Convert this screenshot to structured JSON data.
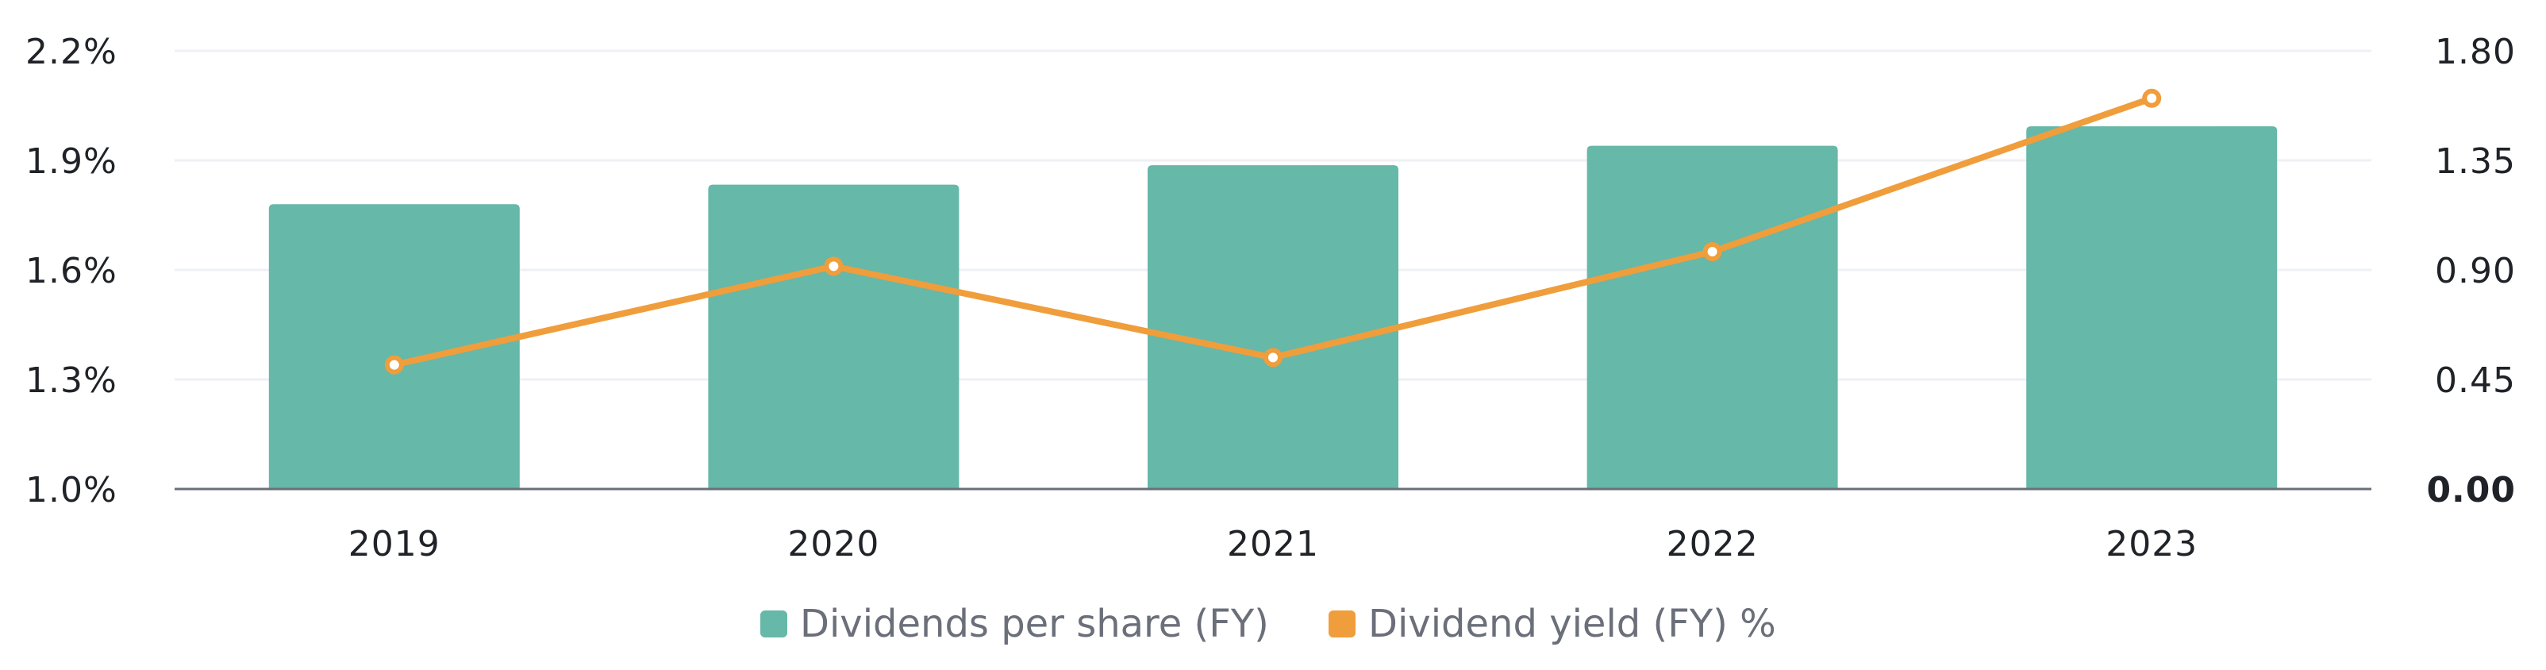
{
  "colors": {
    "bar": "#66b8a8",
    "line": "#f09d3c",
    "grid": "#eef0f4",
    "axis": "#6b6f7a",
    "marker_fill": "#ffffff"
  },
  "chart_data": {
    "type": "bar",
    "categories": [
      "2019",
      "2020",
      "2021",
      "2022",
      "2023"
    ],
    "series": [
      {
        "name": "Dividends per share (FY)",
        "type": "bar",
        "axis": "right",
        "values": [
          1.17,
          1.25,
          1.33,
          1.41,
          1.49
        ]
      },
      {
        "name": "Dividend yield (FY) %",
        "type": "line",
        "axis": "left",
        "values": [
          1.34,
          1.61,
          1.36,
          1.65,
          2.07
        ]
      }
    ],
    "y_left": {
      "ylim": [
        1.0,
        2.2
      ],
      "ticks": [
        1.0,
        1.3,
        1.6,
        1.9,
        2.2
      ],
      "tick_labels": [
        "1.0%",
        "1.3%",
        "1.6%",
        "1.9%",
        "2.2%"
      ]
    },
    "y_right": {
      "ylim": [
        0,
        1.8
      ],
      "ticks": [
        0,
        0.45,
        0.9,
        1.35,
        1.8
      ],
      "tick_labels": [
        "0.00",
        "0.45",
        "0.90",
        "1.35",
        "1.80"
      ]
    },
    "grid": true,
    "legend": {
      "position": "bottom",
      "items": [
        "Dividends per share (FY)",
        "Dividend yield (FY) %"
      ]
    },
    "title": "",
    "xlabel": "",
    "ylabel": ""
  }
}
